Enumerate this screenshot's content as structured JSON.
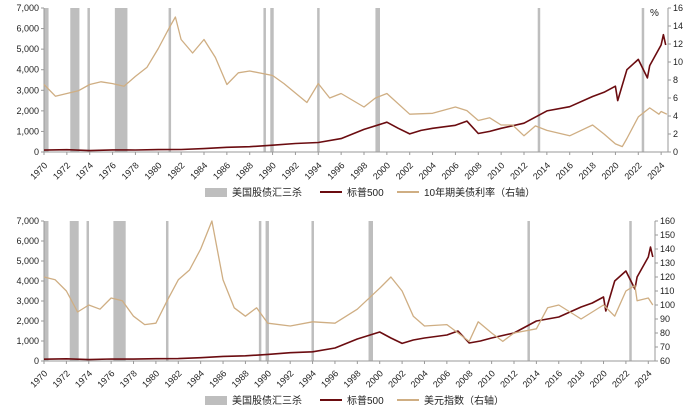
{
  "chart_data": [
    {
      "type": "line",
      "x_range": [
        1970,
        2024.6
      ],
      "x_ticks": [
        "1970",
        "1972",
        "1974",
        "1976",
        "1978",
        "1980",
        "1982",
        "1984",
        "1986",
        "1988",
        "1990",
        "1992",
        "1994",
        "1996",
        "1998",
        "2000",
        "2002",
        "2004",
        "2006",
        "2008",
        "2010",
        "2012",
        "2014",
        "2016",
        "2018",
        "2020",
        "2022",
        "2024"
      ],
      "left_axis": {
        "range": [
          0,
          7000
        ],
        "ticks": [
          "0",
          "1,000",
          "2,000",
          "3,000",
          "4,000",
          "5,000",
          "6,000",
          "7,000"
        ]
      },
      "right_axis": {
        "range": [
          0,
          16
        ],
        "ticks": [
          "0",
          "2",
          "4",
          "6",
          "8",
          "10",
          "12",
          "14",
          "16"
        ],
        "unit": "%"
      },
      "shaded_periods": [
        [
          1970.0,
          1970.4
        ],
        [
          1972.3,
          1973.1
        ],
        [
          1973.8,
          1974.0
        ],
        [
          1976.2,
          1977.3
        ],
        [
          1980.9,
          1981.0
        ],
        [
          1989.2,
          1989.3
        ],
        [
          1989.8,
          1990.1
        ],
        [
          1993.9,
          1994.1
        ],
        [
          1999.0,
          1999.4
        ],
        [
          2013.2,
          2013.3
        ],
        [
          2022.3,
          2022.4
        ]
      ],
      "legend": {
        "shade_label": "美国股债汇三杀",
        "line1_label": "标普500",
        "line2_label": "10年期美债利率（右轴）"
      },
      "colors": {
        "shade": "#bebebe",
        "line1": "#6b0c10",
        "line2": "#cfae83",
        "axis": "#999999"
      },
      "series": [
        {
          "name": "标普500",
          "axis": "left",
          "x": [
            1970,
            1972,
            1974,
            1976,
            1978,
            1980,
            1982,
            1984,
            1986,
            1988,
            1990,
            1992,
            1994,
            1996,
            1998,
            2000,
            2001,
            2002,
            2003,
            2004,
            2006,
            2007,
            2008,
            2009,
            2010,
            2012,
            2014,
            2016,
            2018,
            2019,
            2020,
            2020.2,
            2021,
            2022,
            2022.8,
            2023,
            2024,
            2024.2,
            2024.4
          ],
          "values": [
            90,
            110,
            70,
            100,
            95,
            115,
            120,
            165,
            230,
            260,
            330,
            415,
            460,
            650,
            1100,
            1450,
            1150,
            880,
            1050,
            1150,
            1300,
            1500,
            900,
            1000,
            1150,
            1400,
            2000,
            2200,
            2700,
            2900,
            3200,
            2500,
            4000,
            4500,
            3600,
            4200,
            5200,
            5700,
            5200
          ]
        },
        {
          "name": "10年期美债利率（右轴）",
          "axis": "right",
          "x": [
            1970,
            1971,
            1973,
            1974,
            1975,
            1976,
            1977,
            1978,
            1979,
            1980,
            1981,
            1981.5,
            1982,
            1983,
            1984,
            1985,
            1986,
            1987,
            1988,
            1990,
            1991,
            1993,
            1994,
            1995,
            1996,
            1998,
            1999,
            2000,
            2002,
            2004,
            2006,
            2007,
            2008,
            2009,
            2010,
            2011,
            2012,
            2013,
            2014,
            2016,
            2018,
            2019,
            2020,
            2020.6,
            2021,
            2022,
            2023,
            2023.8,
            2024,
            2024.5
          ],
          "values": [
            7.5,
            6.2,
            6.8,
            7.5,
            7.8,
            7.6,
            7.3,
            8.4,
            9.4,
            11.5,
            13.9,
            15.0,
            12.5,
            11.0,
            12.5,
            10.5,
            7.5,
            8.8,
            9.0,
            8.5,
            7.6,
            5.5,
            7.6,
            6.0,
            6.5,
            5.0,
            6.0,
            6.5,
            4.2,
            4.3,
            5.0,
            4.6,
            3.5,
            3.8,
            3.0,
            3.0,
            1.8,
            2.9,
            2.4,
            1.8,
            3.0,
            2.0,
            0.9,
            0.6,
            1.5,
            3.9,
            4.9,
            4.2,
            4.5,
            4.2
          ]
        }
      ]
    },
    {
      "type": "line",
      "x_range": [
        1970,
        2024.6
      ],
      "x_ticks": [
        "1970",
        "1972",
        "1974",
        "1976",
        "1978",
        "1980",
        "1982",
        "1984",
        "1986",
        "1988",
        "1990",
        "1992",
        "1994",
        "1996",
        "1998",
        "2000",
        "2002",
        "2004",
        "2006",
        "2008",
        "2010",
        "2012",
        "2014",
        "2016",
        "2018",
        "2020",
        "2022",
        "2024"
      ],
      "left_axis": {
        "range": [
          0,
          7000
        ],
        "ticks": [
          "0",
          "1,000",
          "2,000",
          "3,000",
          "4,000",
          "5,000",
          "6,000",
          "7,000"
        ]
      },
      "right_axis": {
        "range": [
          60,
          160
        ],
        "ticks": [
          "60",
          "70",
          "80",
          "90",
          "100",
          "110",
          "120",
          "130",
          "140",
          "150",
          "160"
        ]
      },
      "shaded_periods": [
        [
          1970.0,
          1970.4
        ],
        [
          1972.3,
          1973.1
        ],
        [
          1973.8,
          1974.0
        ],
        [
          1976.2,
          1977.3
        ],
        [
          1980.9,
          1981.0
        ],
        [
          1989.2,
          1989.3
        ],
        [
          1989.8,
          1990.1
        ],
        [
          1993.9,
          1994.1
        ],
        [
          1999.0,
          1999.4
        ],
        [
          2013.2,
          2013.3
        ],
        [
          2022.3,
          2022.4
        ]
      ],
      "legend": {
        "shade_label": "美国股债汇三杀",
        "line1_label": "标普500",
        "line2_label": "美元指数（右轴）"
      },
      "colors": {
        "shade": "#bebebe",
        "line1": "#6b0c10",
        "line2": "#cfae83",
        "axis": "#999999"
      },
      "series": [
        {
          "name": "标普500",
          "axis": "left",
          "x": [
            1970,
            1972,
            1974,
            1976,
            1978,
            1980,
            1982,
            1984,
            1986,
            1988,
            1990,
            1992,
            1994,
            1996,
            1998,
            2000,
            2001,
            2002,
            2003,
            2004,
            2006,
            2007,
            2008,
            2009,
            2010,
            2012,
            2014,
            2016,
            2018,
            2019,
            2020,
            2020.2,
            2021,
            2022,
            2022.8,
            2023,
            2024,
            2024.2,
            2024.4
          ],
          "values": [
            90,
            110,
            70,
            100,
            95,
            115,
            120,
            165,
            230,
            260,
            330,
            415,
            460,
            650,
            1100,
            1450,
            1150,
            880,
            1050,
            1150,
            1300,
            1500,
            900,
            1000,
            1150,
            1400,
            2000,
            2200,
            2700,
            2900,
            3200,
            2500,
            4000,
            4500,
            3600,
            4200,
            5200,
            5700,
            5200
          ]
        },
        {
          "name": "美元指数（右轴）",
          "axis": "right",
          "x": [
            1970,
            1971,
            1972,
            1973,
            1974,
            1975,
            1976,
            1977,
            1978,
            1979,
            1980,
            1981,
            1982,
            1983,
            1984,
            1985,
            1986,
            1987,
            1988,
            1989,
            1990,
            1992,
            1994,
            1996,
            1998,
            2000,
            2001,
            2002,
            2003,
            2004,
            2006,
            2008,
            2008.8,
            2010,
            2011,
            2012,
            2014,
            2015,
            2016,
            2017,
            2018,
            2020,
            2021,
            2022,
            2022.8,
            2023,
            2024,
            2024.4
          ],
          "values": [
            120,
            118,
            110,
            95,
            100,
            97,
            105,
            103,
            92,
            86,
            87,
            103,
            118,
            125,
            140,
            160,
            118,
            98,
            92,
            98,
            87,
            85,
            88,
            87,
            97,
            112,
            120,
            110,
            92,
            85,
            86,
            74,
            88,
            80,
            74,
            80,
            83,
            98,
            100,
            95,
            90,
            100,
            92,
            110,
            114,
            103,
            105,
            100
          ]
        }
      ]
    }
  ]
}
